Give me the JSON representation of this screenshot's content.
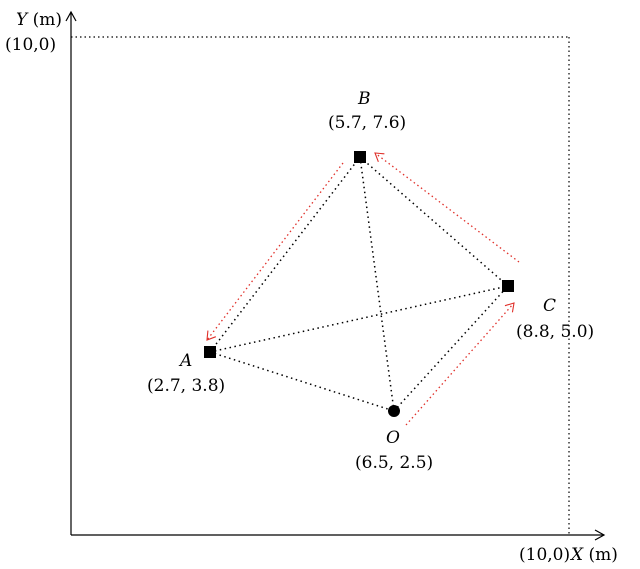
{
  "axes": {
    "y_label_var": "Y",
    "y_label_unit": " (m)",
    "x_label_var": "X",
    "x_label_unit": " (m)",
    "top_corner_label": "(10,0)",
    "right_corner_label": "(10,0)"
  },
  "points": {
    "B": {
      "name": "B",
      "coord_text": "(5.7, 7.6)",
      "x": 5.7,
      "y": 7.6
    },
    "C": {
      "name": "C",
      "coord_text": "(8.8, 5.0)",
      "x": 8.8,
      "y": 5.0
    },
    "A": {
      "name": "A",
      "coord_text": "(2.7, 3.8)",
      "x": 2.7,
      "y": 3.8
    },
    "O": {
      "name": "O",
      "coord_text": "(6.5, 2.5)",
      "x": 6.5,
      "y": 2.5
    }
  },
  "colors": {
    "axis": "#000000",
    "link_dotted": "#000000",
    "path_arrows": "#e0302a",
    "node_fill": "#000000"
  }
}
